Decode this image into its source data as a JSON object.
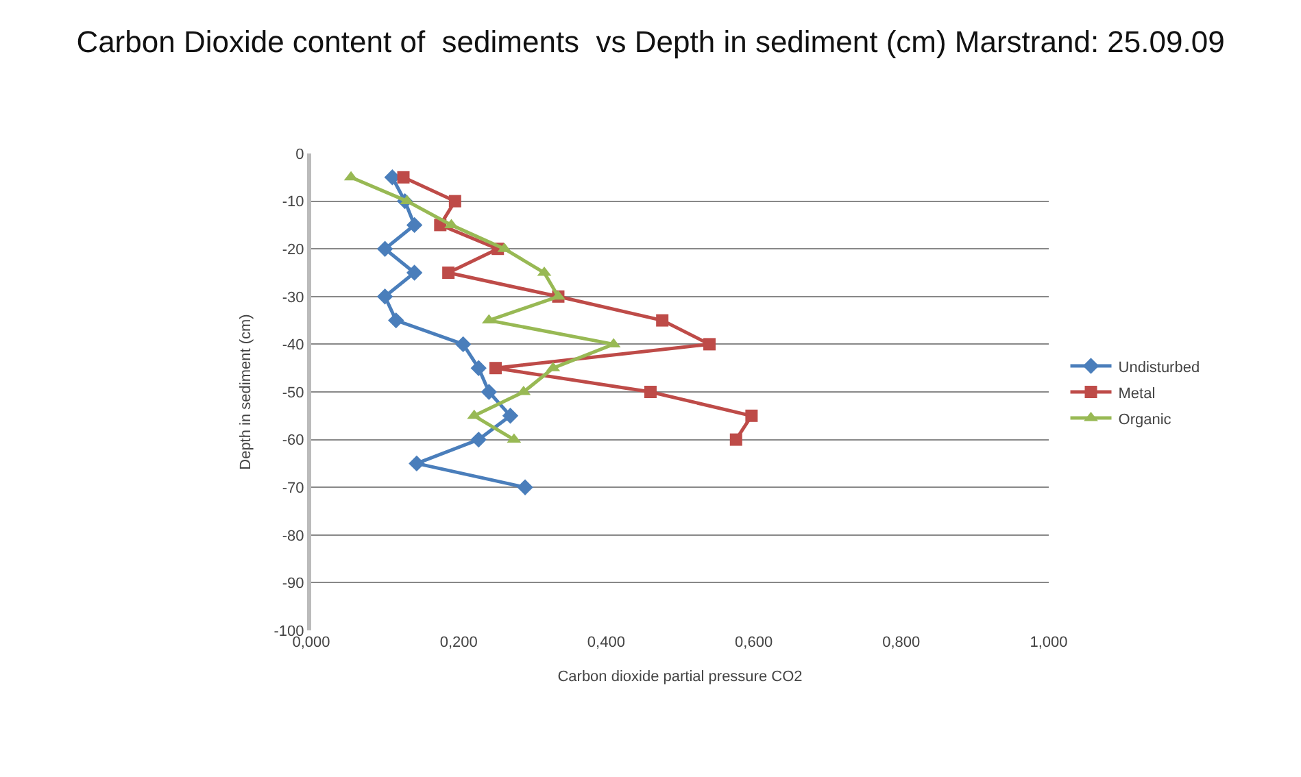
{
  "chart_data": {
    "type": "line",
    "title": "Carbon Dioxide content of  sediments  vs Depth in sediment (cm) Marstrand: 25.09.09",
    "xlabel": "Carbon dioxide partial pressure CO2",
    "ylabel": "Depth in sediment (cm)",
    "series": [
      {
        "name": "Undisturbed",
        "color": "#4a7ebb",
        "marker": "diamond",
        "x": [
          0.11,
          0.127,
          0.14,
          0.1,
          0.14,
          0.1,
          0.115,
          0.206,
          0.227,
          0.241,
          0.27,
          0.227,
          0.143,
          0.29
        ],
        "values": [
          -5,
          -10,
          -15,
          -20,
          -25,
          -30,
          -35,
          -40,
          -45,
          -50,
          -55,
          -60,
          -65,
          -70
        ]
      },
      {
        "name": "Metal",
        "color": "#be4b48",
        "marker": "square",
        "x": [
          0.125,
          0.195,
          0.175,
          0.253,
          0.186,
          0.335,
          0.476,
          0.54,
          0.25,
          0.46,
          0.597,
          0.576
        ],
        "values": [
          -5,
          -10,
          -15,
          -20,
          -25,
          -30,
          -35,
          -40,
          -45,
          -50,
          -55,
          -60
        ]
      },
      {
        "name": "Organic",
        "color": "#98b954",
        "marker": "triangle",
        "x": [
          0.054,
          0.13,
          0.19,
          0.262,
          0.316,
          0.335,
          0.241,
          0.41,
          0.328,
          0.288,
          0.221,
          0.275
        ],
        "values": [
          -5,
          -10,
          -15,
          -20,
          -25,
          -30,
          -35,
          -40,
          -45,
          -50,
          -55,
          -60
        ]
      }
    ],
    "xlim": [
      0,
      1
    ],
    "xticks": [
      {
        "value": 0,
        "label": "0,000"
      },
      {
        "value": 0.2,
        "label": "0,200"
      },
      {
        "value": 0.4,
        "label": "0,400"
      },
      {
        "value": 0.6,
        "label": "0,600"
      },
      {
        "value": 0.8,
        "label": "0,800"
      },
      {
        "value": 1,
        "label": "1,000"
      }
    ],
    "ylim": [
      -100,
      0
    ],
    "yticks": [
      -100,
      -90,
      -80,
      -70,
      -60,
      -50,
      -40,
      -30,
      -20,
      -10,
      0
    ],
    "grid": "y",
    "legend": "right",
    "line_style": "solid"
  }
}
